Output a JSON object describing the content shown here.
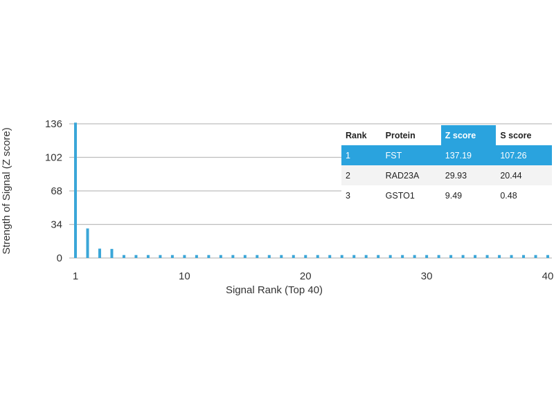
{
  "chart_data": {
    "type": "bar",
    "xlabel": "Signal Rank (Top 40)",
    "ylabel": "Strength of Signal (Z score)",
    "xlim": [
      1,
      40
    ],
    "ylim": [
      0,
      136
    ],
    "x_ticks": [
      "1",
      "10",
      "20",
      "30",
      "40"
    ],
    "y_ticks": [
      "0",
      "34",
      "68",
      "102",
      "136"
    ],
    "grid": "horizontal",
    "bar_color": "#3aa6d8",
    "x": [
      1,
      2,
      3,
      4,
      5,
      6,
      7,
      8,
      9,
      10,
      11,
      12,
      13,
      14,
      15,
      16,
      17,
      18,
      19,
      20,
      21,
      22,
      23,
      24,
      25,
      26,
      27,
      28,
      29,
      30,
      31,
      32,
      33,
      34,
      35,
      36,
      37,
      38,
      39,
      40
    ],
    "values": [
      137.19,
      29.93,
      9.49,
      9.2,
      3,
      3,
      3,
      3,
      3,
      3,
      3,
      3,
      3,
      3,
      3,
      3,
      3,
      3,
      3,
      3,
      3,
      3,
      3,
      3,
      3,
      3,
      3,
      3,
      3,
      3,
      3,
      3,
      3,
      3,
      3,
      3,
      3,
      3,
      3,
      3
    ]
  },
  "table": {
    "headers": [
      "Rank",
      "Protein",
      "Z score",
      "S score"
    ],
    "highlight_color": "#2aa3de",
    "rows": [
      [
        "1",
        "FST",
        "137.19",
        "107.26"
      ],
      [
        "2",
        "RAD23A",
        "29.93",
        "20.44"
      ],
      [
        "3",
        "GSTO1",
        "9.49",
        "0.48"
      ]
    ]
  }
}
